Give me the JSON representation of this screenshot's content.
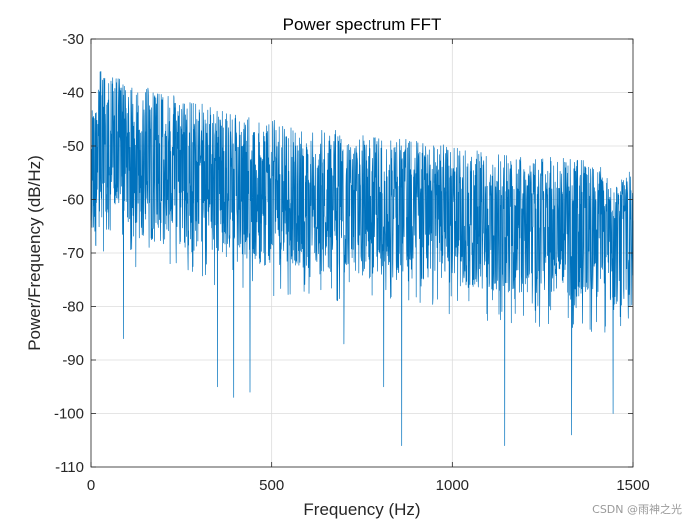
{
  "chart_data": {
    "type": "line",
    "title": "Power spectrum FFT",
    "xlabel": "Frequency (Hz)",
    "ylabel": "Power/Frequency (dB/Hz)",
    "xlim": [
      0,
      1500
    ],
    "ylim": [
      -110,
      -30
    ],
    "xticks": [
      0,
      500,
      1000,
      1500
    ],
    "yticks": [
      -30,
      -40,
      -50,
      -60,
      -70,
      -80,
      -90,
      -100,
      -110
    ],
    "xtick_labels": [
      "0",
      "500",
      "1000",
      "1500"
    ],
    "ytick_labels": [
      "-30",
      "-40",
      "-50",
      "-60",
      "-70",
      "-80",
      "-90",
      "-100",
      "-110"
    ],
    "grid": true,
    "series": [
      {
        "color": "#0072BD",
        "envelope": {
          "x": [
            0,
            25,
            50,
            100,
            200,
            300,
            400,
            500,
            600,
            700,
            800,
            900,
            1000,
            1100,
            1200,
            1300,
            1400,
            1450,
            1500
          ],
          "upper": [
            -42,
            -36,
            -36,
            -38,
            -40,
            -42,
            -44,
            -45,
            -46,
            -47,
            -48,
            -49,
            -50,
            -51,
            -52,
            -52,
            -53,
            -57,
            -54
          ],
          "mean": [
            -53,
            -52,
            -51,
            -52,
            -54,
            -55,
            -57,
            -58,
            -59,
            -60,
            -61,
            -61,
            -62,
            -63,
            -63,
            -64,
            -64,
            -65,
            -66
          ],
          "lower": [
            -68,
            -66,
            -66,
            -67,
            -68,
            -70,
            -71,
            -72,
            -73,
            -74,
            -75,
            -75,
            -76,
            -77,
            -78,
            -78,
            -79,
            -80,
            -80
          ]
        },
        "dips": [
          {
            "x": 90,
            "y": -86
          },
          {
            "x": 350,
            "y": -95
          },
          {
            "x": 395,
            "y": -97
          },
          {
            "x": 440,
            "y": -96
          },
          {
            "x": 700,
            "y": -87
          },
          {
            "x": 810,
            "y": -95
          },
          {
            "x": 860,
            "y": -106
          },
          {
            "x": 1145,
            "y": -106
          },
          {
            "x": 1330,
            "y": -104
          },
          {
            "x": 1445,
            "y": -100
          }
        ]
      }
    ]
  },
  "watermark": "CSDN @雨神之光"
}
